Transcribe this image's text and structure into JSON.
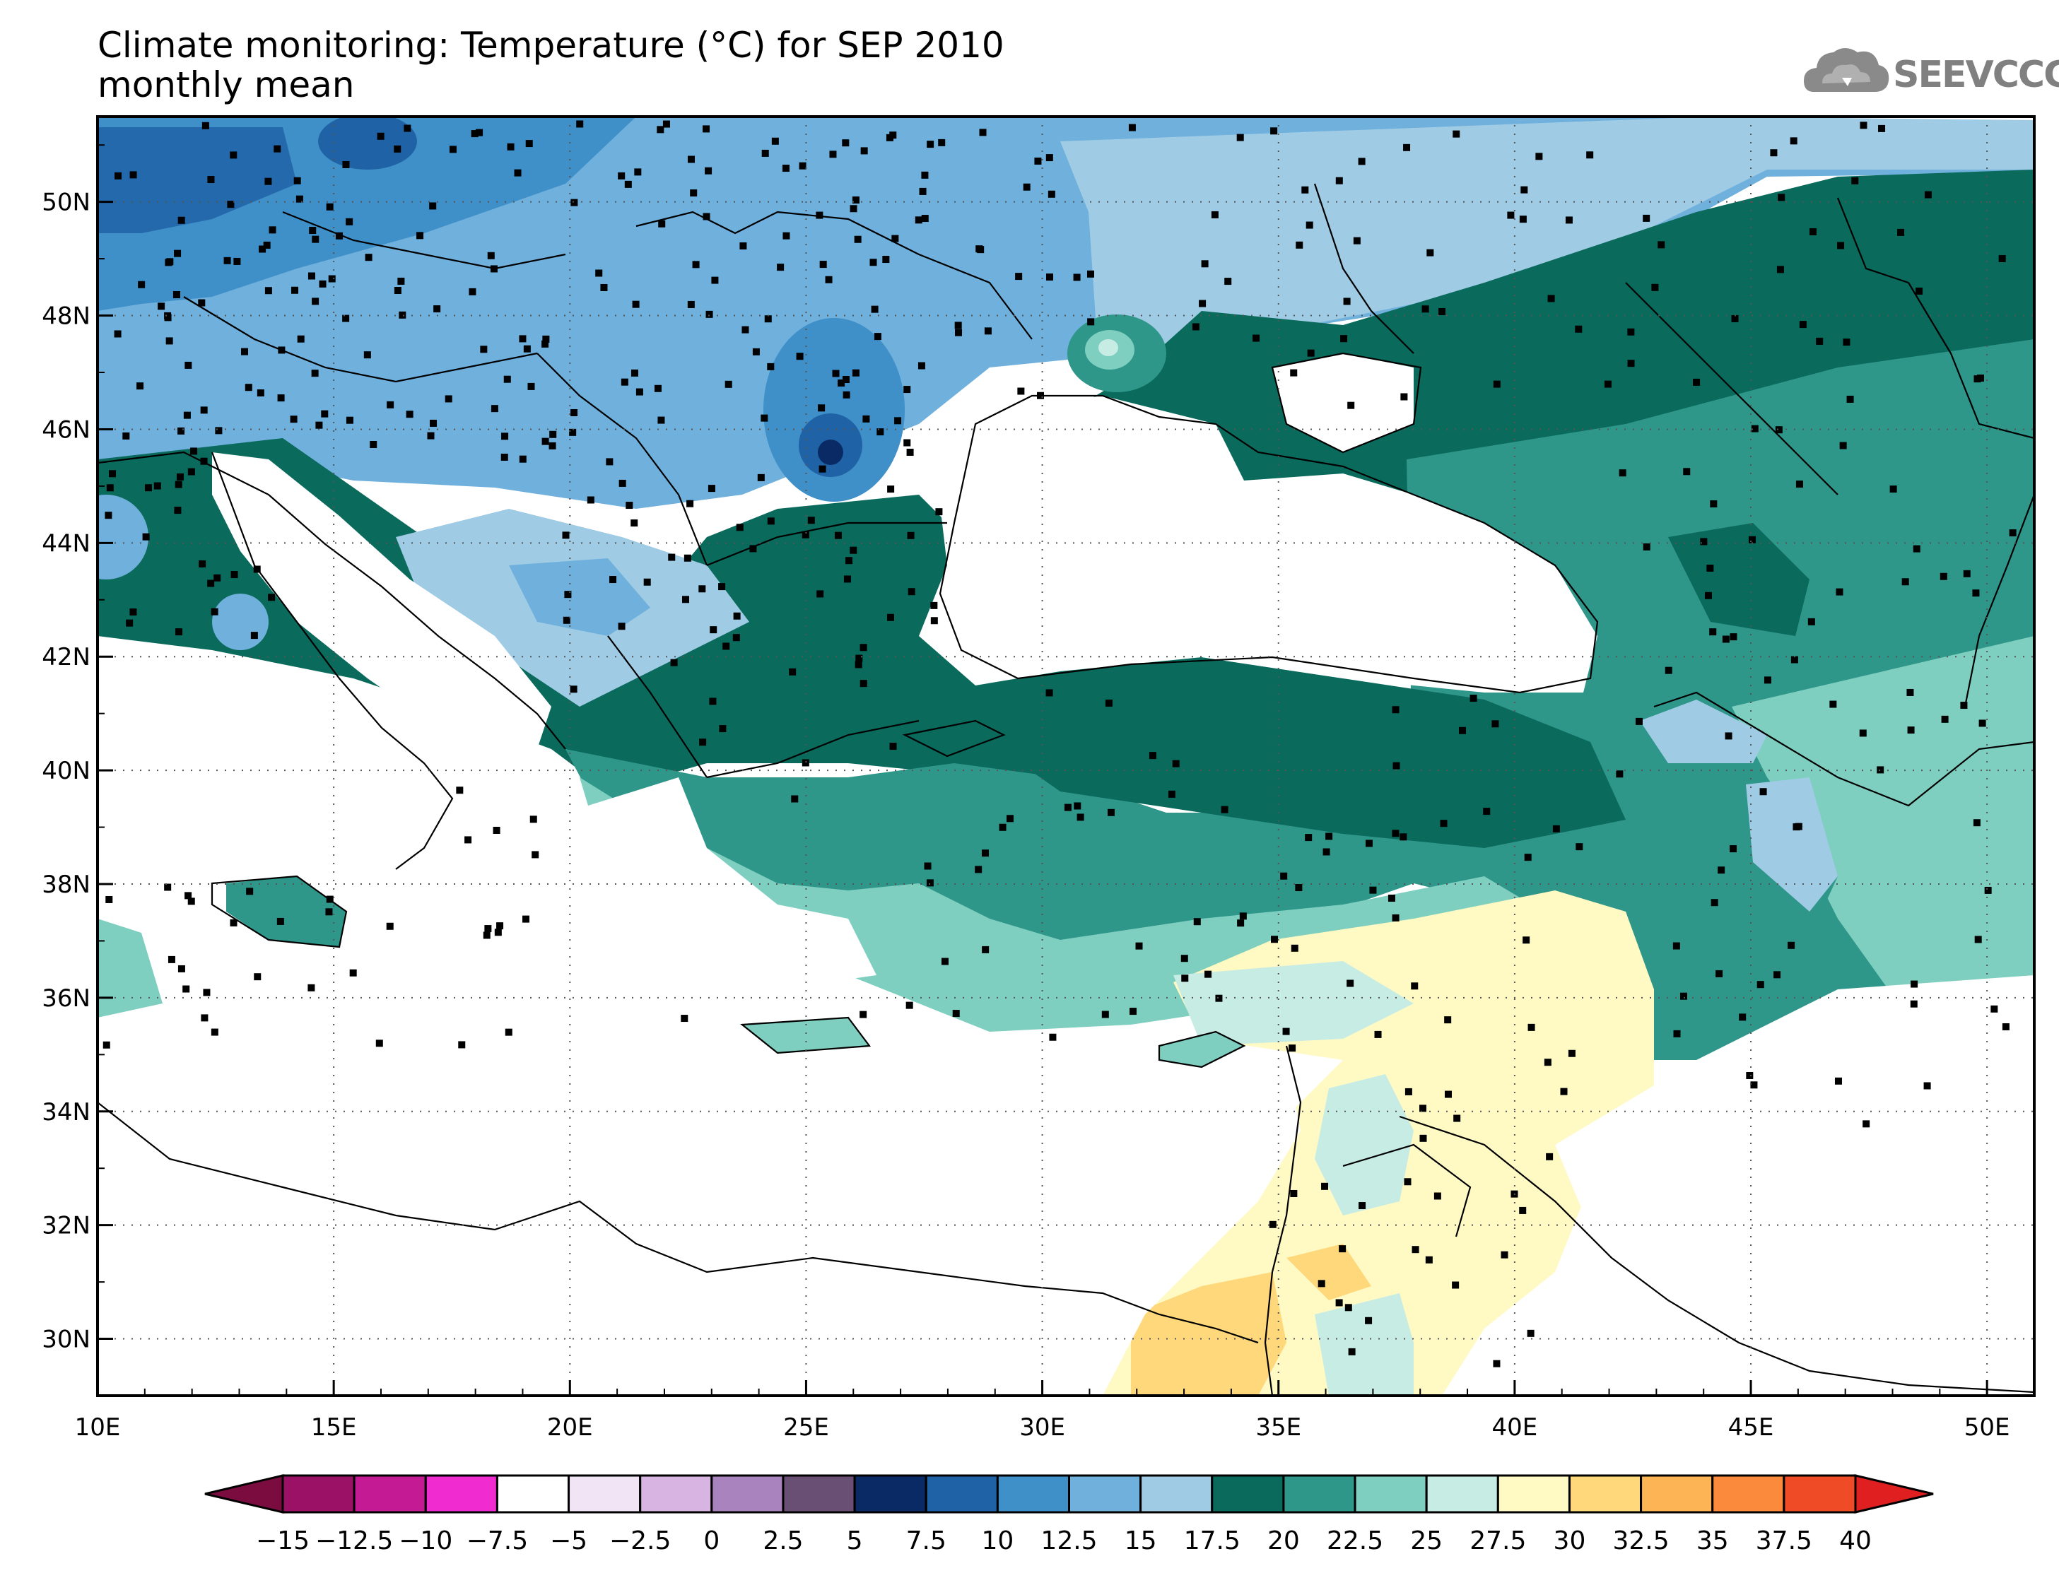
{
  "title_line1": "Climate monitoring: Temperature (°C) for SEP 2010",
  "title_line2": "monthly mean",
  "logo": {
    "text": "SEEVCCC",
    "icon": "cloud-icon",
    "color": "#808080"
  },
  "map": {
    "lon_range": [
      10,
      51
    ],
    "lat_range": [
      29,
      51.5
    ],
    "lon_ticks": [
      {
        "v": 10,
        "label": "10E"
      },
      {
        "v": 15,
        "label": "15E"
      },
      {
        "v": 20,
        "label": "20E"
      },
      {
        "v": 25,
        "label": "25E"
      },
      {
        "v": 30,
        "label": "30E"
      },
      {
        "v": 35,
        "label": "35E"
      },
      {
        "v": 40,
        "label": "40E"
      },
      {
        "v": 45,
        "label": "45E"
      },
      {
        "v": 50,
        "label": "50E"
      }
    ],
    "lat_ticks": [
      {
        "v": 30,
        "label": "30N"
      },
      {
        "v": 32,
        "label": "32N"
      },
      {
        "v": 34,
        "label": "34N"
      },
      {
        "v": 36,
        "label": "36N"
      },
      {
        "v": 38,
        "label": "38N"
      },
      {
        "v": 40,
        "label": "40N"
      },
      {
        "v": 42,
        "label": "42N"
      },
      {
        "v": 44,
        "label": "44N"
      },
      {
        "v": 46,
        "label": "46N"
      },
      {
        "v": 48,
        "label": "48N"
      },
      {
        "v": 50,
        "label": "50N"
      }
    ],
    "grid": "dotted"
  },
  "colorbar": {
    "min_arrow_color": "#7a0c40",
    "max_arrow_color": "#e02020",
    "colors": [
      "#9b1166",
      "#c41a94",
      "#f02cd0",
      "#ffffff",
      "#f1e4f5",
      "#d8b4e2",
      "#a883bd",
      "#6a4f74",
      "#0a2a66",
      "#1f63a6",
      "#3f8fc8",
      "#6fb0dc",
      "#9fcbe4",
      "#0a6a5c",
      "#2f968a",
      "#7ecfc0",
      "#c7ece4",
      "#fff9c4",
      "#fed87a",
      "#fdb455",
      "#fb8a3c",
      "#ef4b26"
    ],
    "labels": [
      "-15",
      "-12.5",
      "-10",
      "-7.5",
      "-5",
      "-2.5",
      "0",
      "2.5",
      "5",
      "7.5",
      "10",
      "12.5",
      "15",
      "17.5",
      "20",
      "22.5",
      "25",
      "27.5",
      "30",
      "32.5",
      "35",
      "37.5",
      "40"
    ]
  }
}
